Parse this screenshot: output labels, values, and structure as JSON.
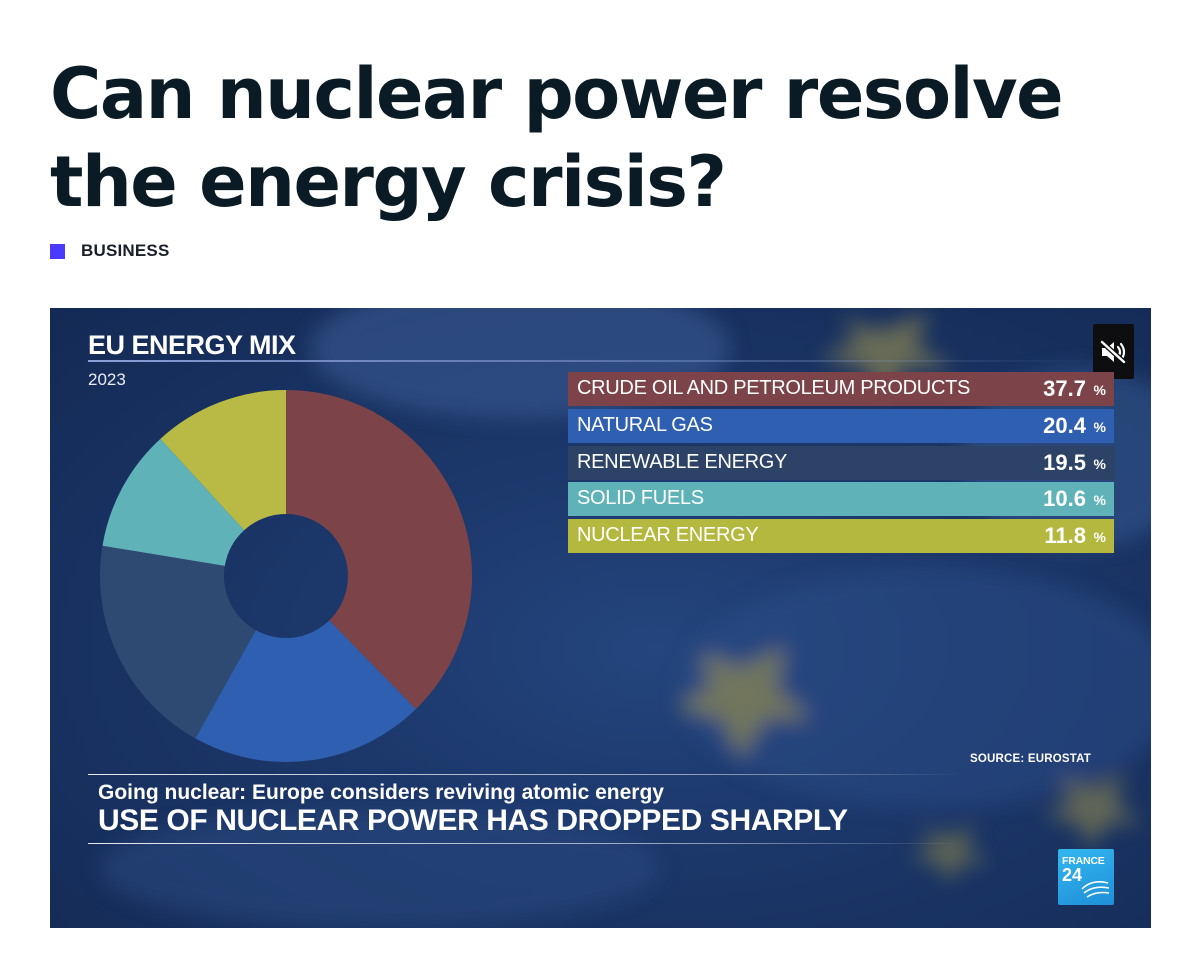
{
  "article": {
    "headline": "Can nuclear power resolve the energy crisis?",
    "category": "BUSINESS",
    "accent_color": "#4a3aff"
  },
  "video": {
    "mix_title": "EU ENERGY MIX",
    "year": "2023",
    "mute_icon": "speaker-muted-icon",
    "source": "SOURCE: EUROSTAT",
    "lower_third_sub": "Going nuclear: Europe considers reviving atomic energy",
    "lower_third_main": "USE OF NUCLEAR POWER HAS DROPPED SHARPLY",
    "logo_line1": "FRANCE",
    "logo_line2": "24"
  },
  "chart_data": {
    "type": "pie",
    "title": "EU ENERGY MIX",
    "subtitle": "2023",
    "donut": true,
    "legend_position": "right",
    "unit": "%",
    "categories": [
      "CRUDE OIL AND PETROLEUM PRODUCTS",
      "NATURAL GAS",
      "RENEWABLE ENERGY",
      "SOLID FUELS",
      "NUCLEAR ENERGY"
    ],
    "values": [
      37.7,
      20.4,
      19.5,
      10.6,
      11.8
    ],
    "value_labels": [
      "37.7",
      "20.4",
      "19.5",
      "10.6",
      "11.8"
    ],
    "pct_symbol": "%",
    "colors": [
      "#7c4448",
      "#2f5fb0",
      "#2f4a72",
      "#5fb3b8",
      "#b8ba45"
    ],
    "legend_colors": [
      "#7c4448",
      "#2f5fb0",
      "#2c4266",
      "#5fb3b8",
      "#b5b83f"
    ]
  }
}
